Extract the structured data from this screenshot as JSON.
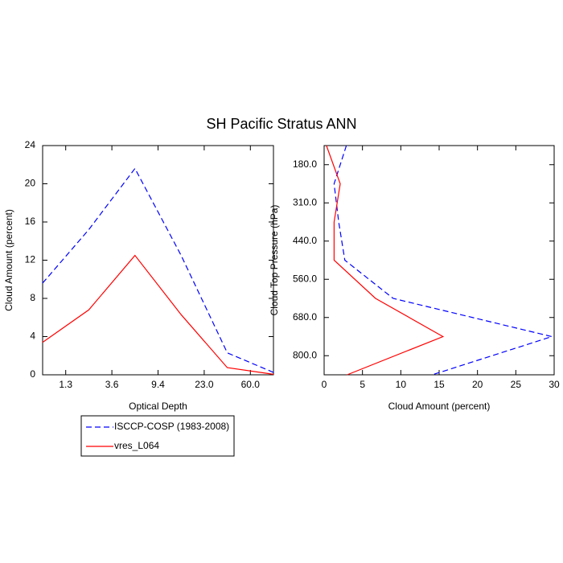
{
  "title": "SH Pacific Stratus ANN",
  "chart_data": [
    {
      "type": "line",
      "xlabel": "Optical Depth",
      "ylabel": "Cloud Amount (percent)",
      "xlim": [
        0,
        5
      ],
      "xticks": [
        {
          "value": 0.5,
          "label": "1.3"
        },
        {
          "value": 1.5,
          "label": "3.6"
        },
        {
          "value": 2.5,
          "label": "9.4"
        },
        {
          "value": 3.5,
          "label": "23.0"
        },
        {
          "value": 4.5,
          "label": "60.0"
        }
      ],
      "ylim": [
        0,
        24
      ],
      "yticks": [
        0,
        4,
        8,
        12,
        16,
        20,
        24
      ],
      "legend": "below",
      "series": [
        {
          "name": "ISCCP-COSP (1983-2008)",
          "color": "#0000ff",
          "dashed": true,
          "values": [
            9.6,
            15.2,
            21.6,
            12.5,
            2.3,
            0.25
          ]
        },
        {
          "name": "vres_L064",
          "color": "#ff0000",
          "dashed": false,
          "values": [
            3.4,
            6.8,
            12.5,
            6.3,
            0.75,
            0.05
          ]
        }
      ]
    },
    {
      "type": "line",
      "orientation": "horizontal",
      "xlabel": "Cloud Amount (percent)",
      "ylabel": "Cloud Top Pressure (hPa)",
      "xlim": [
        0,
        30
      ],
      "xticks": [
        0,
        5,
        10,
        15,
        20,
        25,
        30
      ],
      "ylim": [
        6,
        0
      ],
      "yticks": [
        {
          "value": 0.5,
          "label": "180.0"
        },
        {
          "value": 1.5,
          "label": "310.0"
        },
        {
          "value": 2.5,
          "label": "440.0"
        },
        {
          "value": 3.5,
          "label": "560.0"
        },
        {
          "value": 4.5,
          "label": "680.0"
        },
        {
          "value": 5.5,
          "label": "800.0"
        }
      ],
      "series": [
        {
          "color": "#0000ff",
          "dashed": true,
          "values": [
            2.9,
            1.3,
            1.9,
            2.7,
            9.0,
            29.7,
            14.1
          ]
        },
        {
          "color": "#ff0000",
          "dashed": false,
          "values": [
            0.3,
            2.1,
            1.3,
            1.3,
            6.7,
            15.5,
            3.0
          ]
        }
      ]
    }
  ]
}
